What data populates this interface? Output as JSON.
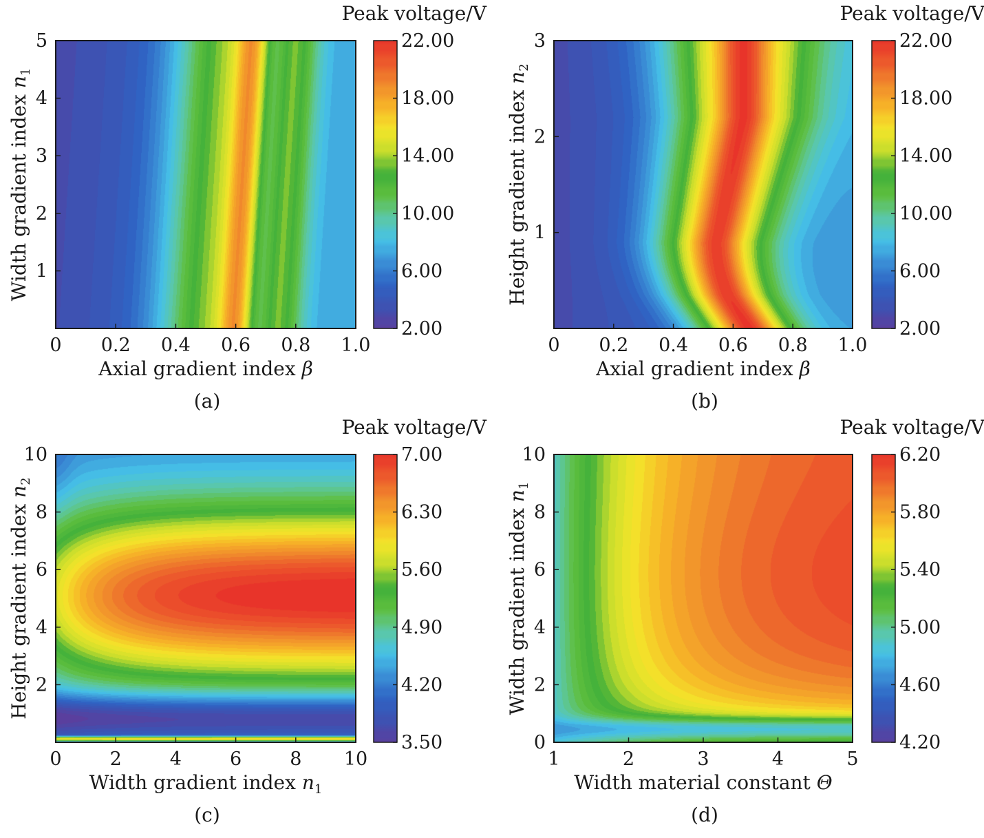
{
  "colorscale": [
    "#5a3f9e",
    "#3d52b2",
    "#2f64c4",
    "#3b8fd6",
    "#46c2e8",
    "#5cc8a5",
    "#5fbf3e",
    "#3faf3a",
    "#c6dd2c",
    "#f4e52a",
    "#f6b428",
    "#f08a2c",
    "#ec5a2c",
    "#e8342a"
  ],
  "chart_data": [
    {
      "type": "heatmap",
      "panel_label": "(a)",
      "title": "Peak voltage/V",
      "xlabel": "Axial gradient index",
      "xlabel_symbol": "β",
      "ylabel": "Width gradient index",
      "ylabel_symbol": "n",
      "ylabel_subscript": "1",
      "xlim": [
        0,
        1
      ],
      "ylim": [
        0,
        5
      ],
      "xticks": [
        0,
        0.2,
        0.4,
        0.6,
        0.8,
        1.0
      ],
      "xtick_labels": [
        "0",
        "0.2",
        "0.4",
        "0.6",
        "0.8",
        "1.0"
      ],
      "yticks": [
        1,
        2,
        3,
        4,
        5
      ],
      "ytick_labels": [
        "1",
        "2",
        "3",
        "4",
        "5"
      ],
      "clim": [
        2,
        22
      ],
      "cticks": [
        2,
        6,
        10,
        14,
        18,
        22
      ],
      "ctick_labels": [
        "2.00",
        "6.00",
        "10.00",
        "14.00",
        "18.00",
        "22.00"
      ],
      "field": "panel_a"
    },
    {
      "type": "heatmap",
      "panel_label": "(b)",
      "title": "Peak voltage/V",
      "xlabel": "Axial gradient index",
      "xlabel_symbol": "β",
      "ylabel": "Height gradient index",
      "ylabel_symbol": "n",
      "ylabel_subscript": "2",
      "xlim": [
        0,
        1
      ],
      "ylim": [
        0,
        3
      ],
      "xticks": [
        0,
        0.2,
        0.4,
        0.6,
        0.8,
        1.0
      ],
      "xtick_labels": [
        "0",
        "0.2",
        "0.4",
        "0.6",
        "0.8",
        "1.0"
      ],
      "yticks": [
        1,
        2,
        3
      ],
      "ytick_labels": [
        "1",
        "2",
        "3"
      ],
      "clim": [
        2,
        22
      ],
      "cticks": [
        2,
        6,
        10,
        14,
        18,
        22
      ],
      "ctick_labels": [
        "2.00",
        "6.00",
        "10.00",
        "14.00",
        "18.00",
        "22.00"
      ],
      "field": "panel_b"
    },
    {
      "type": "heatmap",
      "panel_label": "(c)",
      "title": "Peak voltage/V",
      "xlabel": "Width gradient index",
      "xlabel_symbol": "n",
      "xlabel_subscript": "1",
      "ylabel": "Height gradient index",
      "ylabel_symbol": "n",
      "ylabel_subscript": "2",
      "xlim": [
        0,
        10
      ],
      "ylim": [
        0,
        10
      ],
      "xticks": [
        0,
        2,
        4,
        6,
        8,
        10
      ],
      "xtick_labels": [
        "0",
        "2",
        "4",
        "6",
        "8",
        "10"
      ],
      "yticks": [
        2,
        4,
        6,
        8,
        10
      ],
      "ytick_labels": [
        "2",
        "4",
        "6",
        "8",
        "10"
      ],
      "clim": [
        3.5,
        7
      ],
      "cticks": [
        3.5,
        4.2,
        4.9,
        5.6,
        6.3,
        7.0
      ],
      "ctick_labels": [
        "3.50",
        "4.20",
        "4.90",
        "5.60",
        "6.30",
        "7.00"
      ],
      "field": "panel_c"
    },
    {
      "type": "heatmap",
      "panel_label": "(d)",
      "title": "Peak voltage/V",
      "xlabel": "Width material constant",
      "xlabel_symbol": "Θ",
      "ylabel": "Width gradient index",
      "ylabel_symbol": "n",
      "ylabel_subscript": "1",
      "xlim": [
        1,
        5
      ],
      "ylim": [
        0,
        10
      ],
      "xticks": [
        1,
        2,
        3,
        4,
        5
      ],
      "xtick_labels": [
        "1",
        "2",
        "3",
        "4",
        "5"
      ],
      "yticks": [
        0,
        2,
        4,
        6,
        8,
        10
      ],
      "ytick_labels": [
        "0",
        "2",
        "4",
        "6",
        "8",
        "10"
      ],
      "clim": [
        4.2,
        6.2
      ],
      "cticks": [
        4.2,
        4.6,
        5.0,
        5.4,
        5.8,
        6.2
      ],
      "ctick_labels": [
        "4.20",
        "4.60",
        "5.00",
        "5.40",
        "5.80",
        "6.20"
      ],
      "field": "panel_d"
    }
  ]
}
